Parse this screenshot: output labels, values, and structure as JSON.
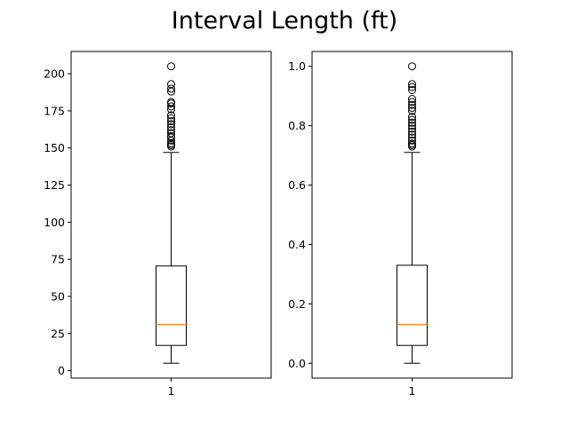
{
  "figure": {
    "title": "Interval Length (ft)"
  },
  "chart_data": [
    {
      "type": "box",
      "title": "",
      "xlabel": "",
      "ylabel": "",
      "categories": [
        "1"
      ],
      "ylim": [
        -5,
        215
      ],
      "yticks": [
        0,
        25,
        50,
        75,
        100,
        125,
        150,
        175,
        200
      ],
      "yticklabels": [
        "0",
        "25",
        "50",
        "75",
        "100",
        "125",
        "150",
        "175",
        "200"
      ],
      "box": {
        "whislo": 5,
        "q1": 17,
        "median": 31,
        "q3": 70.5,
        "whishi": 147
      },
      "fliers": [
        151,
        152,
        153,
        155,
        157,
        158,
        160,
        162,
        164,
        166,
        168,
        170,
        172,
        176,
        178,
        180,
        181,
        188,
        190,
        193,
        205
      ],
      "grid": false,
      "colors": {
        "box": "#000000",
        "median": "#ff7f0e"
      }
    },
    {
      "type": "box",
      "title": "",
      "xlabel": "",
      "ylabel": "",
      "categories": [
        "1"
      ],
      "ylim": [
        -0.05,
        1.05
      ],
      "yticks": [
        0.0,
        0.2,
        0.4,
        0.6,
        0.8,
        1.0
      ],
      "yticklabels": [
        "0.0",
        "0.2",
        "0.4",
        "0.6",
        "0.8",
        "1.0"
      ],
      "box": {
        "whislo": 0.0,
        "q1": 0.06,
        "median": 0.13,
        "q3": 0.33,
        "whishi": 0.71
      },
      "fliers": [
        0.73,
        0.735,
        0.74,
        0.75,
        0.76,
        0.77,
        0.78,
        0.79,
        0.8,
        0.81,
        0.82,
        0.83,
        0.85,
        0.86,
        0.87,
        0.88,
        0.89,
        0.92,
        0.93,
        0.94,
        1.0
      ],
      "grid": false,
      "colors": {
        "box": "#000000",
        "median": "#ff7f0e"
      }
    }
  ]
}
